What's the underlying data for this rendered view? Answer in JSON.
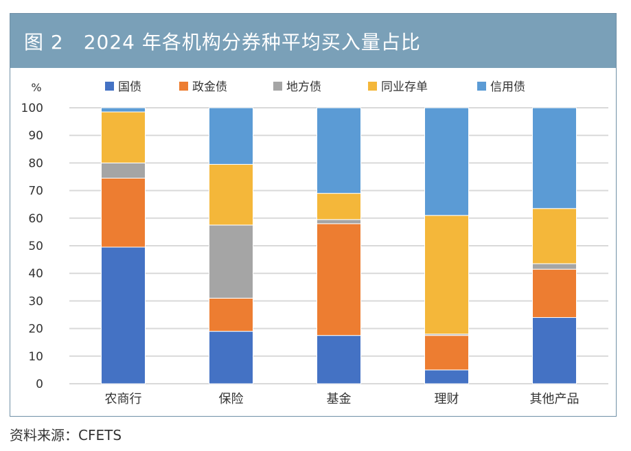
{
  "header": {
    "title": "图 2　2024 年各机构分券种平均买入量占比"
  },
  "source": "资料来源：CFETS",
  "chart_data": {
    "type": "bar",
    "stacked": true,
    "unit_label": "%",
    "categories": [
      "农商行",
      "保险",
      "基金",
      "理财",
      "其他产品"
    ],
    "series": [
      {
        "name": "国债",
        "color": "#4472c4",
        "values": [
          49.5,
          19.0,
          17.5,
          5.0,
          24.0
        ]
      },
      {
        "name": "政金债",
        "color": "#ed7d31",
        "values": [
          25.0,
          12.0,
          40.5,
          12.5,
          17.5
        ]
      },
      {
        "name": "地方债",
        "color": "#a5a5a5",
        "values": [
          5.5,
          26.5,
          1.5,
          0.5,
          2.0
        ]
      },
      {
        "name": "同业存单",
        "color": "#f4b73a",
        "values": [
          18.5,
          22.0,
          9.5,
          43.0,
          20.0
        ]
      },
      {
        "name": "信用债",
        "color": "#5b9bd5",
        "values": [
          1.5,
          20.5,
          31.0,
          39.0,
          36.5
        ]
      }
    ],
    "yticks": [
      0,
      10,
      20,
      30,
      40,
      50,
      60,
      70,
      80,
      90,
      100
    ],
    "ylim": [
      0,
      100
    ],
    "grid": true,
    "legend": "top"
  }
}
